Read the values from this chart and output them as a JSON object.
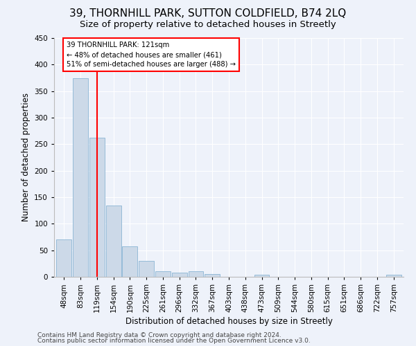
{
  "title": "39, THORNHILL PARK, SUTTON COLDFIELD, B74 2LQ",
  "subtitle": "Size of property relative to detached houses in Streetly",
  "xlabel": "Distribution of detached houses by size in Streetly",
  "ylabel": "Number of detached properties",
  "bin_labels": [
    "48sqm",
    "83sqm",
    "119sqm",
    "154sqm",
    "190sqm",
    "225sqm",
    "261sqm",
    "296sqm",
    "332sqm",
    "367sqm",
    "403sqm",
    "438sqm",
    "473sqm",
    "509sqm",
    "544sqm",
    "580sqm",
    "615sqm",
    "651sqm",
    "686sqm",
    "722sqm",
    "757sqm"
  ],
  "bar_values": [
    70,
    375,
    262,
    135,
    58,
    30,
    10,
    8,
    10,
    5,
    0,
    0,
    4,
    0,
    0,
    0,
    0,
    0,
    0,
    0,
    4
  ],
  "bar_color": "#ccd9e8",
  "bar_edge_color": "#8ab4d4",
  "vline_color": "red",
  "annotation_text": "39 THORNHILL PARK: 121sqm\n← 48% of detached houses are smaller (461)\n51% of semi-detached houses are larger (488) →",
  "annotation_box_color": "white",
  "annotation_box_edge": "red",
  "ylim": [
    0,
    450
  ],
  "yticks": [
    0,
    50,
    100,
    150,
    200,
    250,
    300,
    350,
    400,
    450
  ],
  "footer_line1": "Contains HM Land Registry data © Crown copyright and database right 2024.",
  "footer_line2": "Contains public sector information licensed under the Open Government Licence v3.0.",
  "bg_color": "#eef2fa",
  "plot_bg_color": "#eef2fa",
  "grid_color": "white",
  "title_fontsize": 11,
  "subtitle_fontsize": 9.5,
  "label_fontsize": 8.5,
  "tick_fontsize": 7.5,
  "footer_fontsize": 6.5
}
